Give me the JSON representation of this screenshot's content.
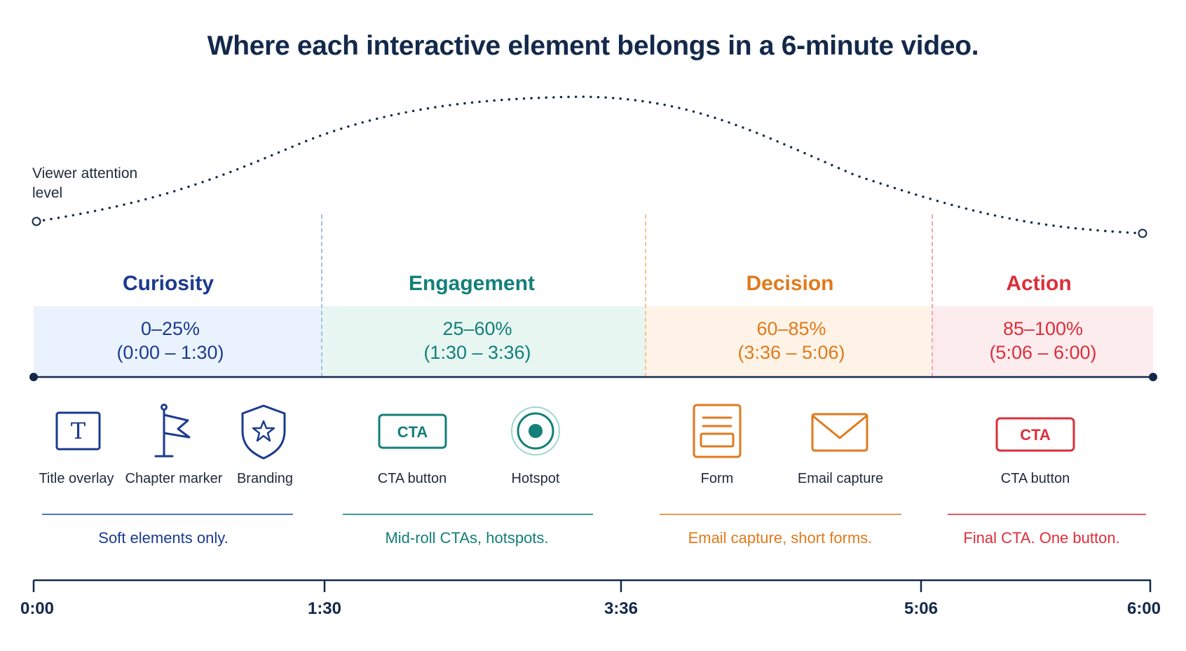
{
  "title": "Where each interactive element belongs in a 6-minute video.",
  "attention_label": "Viewer attention level",
  "phases": [
    {
      "name": "Curiosity",
      "range": "0–25%",
      "time": "(0:00 – 1:30)",
      "summary": "Soft elements only.",
      "color": "#1b3a8f",
      "band": "#eaf3fd",
      "rule": "#4a78c8",
      "divider": "#9fc0ea"
    },
    {
      "name": "Engagement",
      "range": "25–60%",
      "time": "(1:30 – 3:36)",
      "summary": "Mid-roll CTAs, hotspots.",
      "color": "#137f79",
      "band": "#e8f6f2",
      "rule": "#3a9c97",
      "divider": "#f5c48e"
    },
    {
      "name": "Decision",
      "range": "60–85%",
      "time": "(3:36 – 5:06)",
      "summary": "Email capture, short forms.",
      "color": "#e07a1c",
      "band": "#fef3e6",
      "rule": "#eb9a55",
      "divider": "#f4a7ac"
    },
    {
      "name": "Action",
      "range": "85–100%",
      "time": "(5:06 – 6:00)",
      "summary": "Final CTA. One button.",
      "color": "#dc2f3a",
      "band": "#fdecee",
      "rule": "#e35a62",
      "divider": ""
    }
  ],
  "elements": [
    {
      "label": "Title overlay",
      "icon": "title-overlay-icon",
      "glyph": "T"
    },
    {
      "label": "Chapter marker",
      "icon": "flag-icon"
    },
    {
      "label": "Branding",
      "icon": "shield-star-icon"
    },
    {
      "label": "CTA button",
      "icon": "cta-button-icon",
      "glyph": "CTA"
    },
    {
      "label": "Hotspot",
      "icon": "hotspot-icon"
    },
    {
      "label": "Form",
      "icon": "form-icon"
    },
    {
      "label": "Email capture",
      "icon": "envelope-icon"
    },
    {
      "label": "CTA button",
      "icon": "cta-button-icon",
      "glyph": "CTA"
    }
  ],
  "timeline": [
    "0:00",
    "1:30",
    "3:36",
    "5:06",
    "6:00"
  ],
  "colors": {
    "navy": "#13294b"
  }
}
